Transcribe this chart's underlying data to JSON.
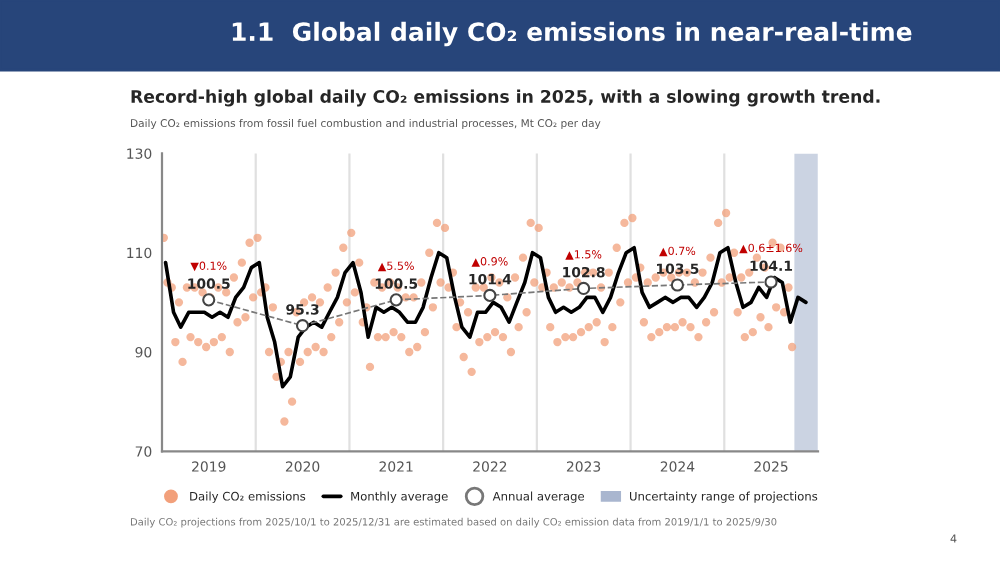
{
  "chart_data": {
    "type": "scatter",
    "title": "1.1  Global daily CO₂ emissions in near-real-time",
    "subtitle": "Record-high global daily CO₂ emissions in 2025, with a slowing growth trend.",
    "ylabel": "Daily CO₂ emissions from fossil fuel combustion and industrial processes, Mt CO₂ per day",
    "xlim": [
      "2019-01-01",
      "2026-01-01"
    ],
    "xticks": [
      {
        "value": "2019-07-02",
        "label": "2019"
      },
      {
        "value": "2020-07-02",
        "label": "2020"
      },
      {
        "value": "2021-07-02",
        "label": "2021"
      },
      {
        "value": "2022-07-02",
        "label": "2022"
      },
      {
        "value": "2023-07-02",
        "label": "2023"
      },
      {
        "value": "2024-07-02",
        "label": "2024"
      },
      {
        "value": "2025-07-02",
        "label": "2025"
      }
    ],
    "ylim": [
      70,
      130
    ],
    "yticks": [
      70,
      90,
      110,
      130
    ],
    "grid": false,
    "legend": "bottom",
    "ref_lines": [
      {
        "axis": "x",
        "value": "2020-01-01",
        "color": "#e0e0e0"
      },
      {
        "axis": "x",
        "value": "2021-01-01",
        "color": "#e0e0e0"
      },
      {
        "axis": "x",
        "value": "2022-01-01",
        "color": "#e0e0e0"
      },
      {
        "axis": "x",
        "value": "2023-01-01",
        "color": "#e0e0e0"
      },
      {
        "axis": "x",
        "value": "2024-01-01",
        "color": "#e0e0e0"
      },
      {
        "axis": "x",
        "value": "2025-01-01",
        "color": "#e0e0e0"
      }
    ],
    "bands": [
      {
        "axis": "x",
        "from": "2025-10-01",
        "to": "2025-12-31",
        "label": "Uncertainty range of projections",
        "color": "#a9b6cf"
      }
    ],
    "series": [
      {
        "name": "Daily CO₂ emissions",
        "marker": "circle",
        "color": "#f2a07b",
        "x": [
          "2019-01-08",
          "2019-01-22",
          "2019-02-08",
          "2019-02-22",
          "2019-03-08",
          "2019-03-22",
          "2019-04-08",
          "2019-04-22",
          "2019-05-08",
          "2019-05-22",
          "2019-06-08",
          "2019-06-22",
          "2019-07-08",
          "2019-07-22",
          "2019-08-08",
          "2019-08-22",
          "2019-09-08",
          "2019-09-22",
          "2019-10-08",
          "2019-10-22",
          "2019-11-08",
          "2019-11-22",
          "2019-12-08",
          "2019-12-22",
          "2020-01-08",
          "2020-01-22",
          "2020-02-08",
          "2020-02-22",
          "2020-03-08",
          "2020-03-22",
          "2020-04-08",
          "2020-04-22",
          "2020-05-08",
          "2020-05-22",
          "2020-06-08",
          "2020-06-22",
          "2020-07-08",
          "2020-07-22",
          "2020-08-08",
          "2020-08-22",
          "2020-09-08",
          "2020-09-22",
          "2020-10-08",
          "2020-10-22",
          "2020-11-08",
          "2020-11-22",
          "2020-12-08",
          "2020-12-22",
          "2021-01-08",
          "2021-01-22",
          "2021-02-08",
          "2021-02-22",
          "2021-03-08",
          "2021-03-22",
          "2021-04-08",
          "2021-04-22",
          "2021-05-08",
          "2021-05-22",
          "2021-06-08",
          "2021-06-22",
          "2021-07-08",
          "2021-07-22",
          "2021-08-08",
          "2021-08-22",
          "2021-09-08",
          "2021-09-22",
          "2021-10-08",
          "2021-10-22",
          "2021-11-08",
          "2021-11-22",
          "2021-12-08",
          "2021-12-22",
          "2022-01-08",
          "2022-01-22",
          "2022-02-08",
          "2022-02-22",
          "2022-03-08",
          "2022-03-22",
          "2022-04-08",
          "2022-04-22",
          "2022-05-08",
          "2022-05-22",
          "2022-06-08",
          "2022-06-22",
          "2022-07-08",
          "2022-07-22",
          "2022-08-08",
          "2022-08-22",
          "2022-09-08",
          "2022-09-22",
          "2022-10-08",
          "2022-10-22",
          "2022-11-08",
          "2022-11-22",
          "2022-12-08",
          "2022-12-22",
          "2023-01-08",
          "2023-01-22",
          "2023-02-08",
          "2023-02-22",
          "2023-03-08",
          "2023-03-22",
          "2023-04-08",
          "2023-04-22",
          "2023-05-08",
          "2023-05-22",
          "2023-06-08",
          "2023-06-22",
          "2023-07-08",
          "2023-07-22",
          "2023-08-08",
          "2023-08-22",
          "2023-09-08",
          "2023-09-22",
          "2023-10-08",
          "2023-10-22",
          "2023-11-08",
          "2023-11-22",
          "2023-12-08",
          "2023-12-22",
          "2024-01-08",
          "2024-01-22",
          "2024-02-08",
          "2024-02-22",
          "2024-03-08",
          "2024-03-22",
          "2024-04-08",
          "2024-04-22",
          "2024-05-08",
          "2024-05-22",
          "2024-06-08",
          "2024-06-22",
          "2024-07-08",
          "2024-07-22",
          "2024-08-08",
          "2024-08-22",
          "2024-09-08",
          "2024-09-22",
          "2024-10-08",
          "2024-10-22",
          "2024-11-08",
          "2024-11-22",
          "2024-12-08",
          "2024-12-22",
          "2025-01-08",
          "2025-01-22",
          "2025-02-08",
          "2025-02-22",
          "2025-03-08",
          "2025-03-22",
          "2025-04-08",
          "2025-04-22",
          "2025-05-08",
          "2025-05-22",
          "2025-06-08",
          "2025-06-22",
          "2025-07-08",
          "2025-07-22",
          "2025-08-08",
          "2025-08-22",
          "2025-09-08",
          "2025-09-22"
        ],
        "values": [
          113,
          104,
          103,
          92,
          100,
          88,
          103,
          93,
          103,
          92,
          102,
          91,
          101,
          92,
          103,
          93,
          102,
          90,
          105,
          96,
          108,
          97,
          112,
          101,
          113,
          102,
          103,
          90,
          99,
          85,
          88,
          76,
          90,
          80,
          98,
          88,
          100,
          90,
          101,
          91,
          100,
          90,
          103,
          93,
          106,
          96,
          111,
          100,
          114,
          102,
          108,
          96,
          99,
          87,
          104,
          93,
          103,
          93,
          104,
          94,
          103,
          93,
          101,
          90,
          101,
          91,
          104,
          94,
          110,
          99,
          116,
          104,
          115,
          103,
          106,
          95,
          100,
          89,
          98,
          86,
          103,
          92,
          103,
          93,
          105,
          94,
          104,
          93,
          101,
          90,
          105,
          95,
          109,
          98,
          116,
          104,
          115,
          103,
          106,
          95,
          103,
          92,
          104,
          93,
          103,
          93,
          104,
          94,
          106,
          95,
          106,
          96,
          103,
          92,
          106,
          95,
          111,
          100,
          116,
          104,
          117,
          105,
          107,
          96,
          104,
          93,
          105,
          94,
          106,
          95,
          105,
          95,
          106,
          96,
          106,
          95,
          104,
          93,
          106,
          96,
          109,
          98,
          116,
          104,
          118,
          105,
          110,
          98,
          105,
          93,
          106,
          94,
          109,
          97,
          107,
          95,
          112,
          99,
          111,
          98,
          103,
          91
        ]
      },
      {
        "name": "Monthly average",
        "type": "line",
        "line_style": "solid",
        "color": "#000000",
        "x": [
          "2019-01-15",
          "2019-02-15",
          "2019-03-15",
          "2019-04-15",
          "2019-05-15",
          "2019-06-15",
          "2019-07-15",
          "2019-08-15",
          "2019-09-15",
          "2019-10-15",
          "2019-11-15",
          "2019-12-15",
          "2020-01-15",
          "2020-02-15",
          "2020-03-15",
          "2020-04-15",
          "2020-05-15",
          "2020-06-15",
          "2020-07-15",
          "2020-08-15",
          "2020-09-15",
          "2020-10-15",
          "2020-11-15",
          "2020-12-15",
          "2021-01-15",
          "2021-02-15",
          "2021-03-15",
          "2021-04-15",
          "2021-05-15",
          "2021-06-15",
          "2021-07-15",
          "2021-08-15",
          "2021-09-15",
          "2021-10-15",
          "2021-11-15",
          "2021-12-15",
          "2022-01-15",
          "2022-02-15",
          "2022-03-15",
          "2022-04-15",
          "2022-05-15",
          "2022-06-15",
          "2022-07-15",
          "2022-08-15",
          "2022-09-15",
          "2022-10-15",
          "2022-11-15",
          "2022-12-15",
          "2023-01-15",
          "2023-02-15",
          "2023-03-15",
          "2023-04-15",
          "2023-05-15",
          "2023-06-15",
          "2023-07-15",
          "2023-08-15",
          "2023-09-15",
          "2023-10-15",
          "2023-11-15",
          "2023-12-15",
          "2024-01-15",
          "2024-02-15",
          "2024-03-15",
          "2024-04-15",
          "2024-05-15",
          "2024-06-15",
          "2024-07-15",
          "2024-08-15",
          "2024-09-15",
          "2024-10-15",
          "2024-11-15",
          "2024-12-15",
          "2025-01-15",
          "2025-02-15",
          "2025-03-15",
          "2025-04-15",
          "2025-05-15",
          "2025-06-15",
          "2025-07-15",
          "2025-08-15",
          "2025-09-15",
          "2025-10-15",
          "2025-11-15"
        ],
        "values": [
          108,
          98,
          95,
          98,
          98,
          98,
          97,
          98,
          97,
          101,
          103,
          107,
          108,
          97,
          92,
          83,
          85,
          93,
          95,
          96,
          95,
          98,
          101,
          106,
          108,
          102,
          93,
          99,
          98,
          99,
          98,
          96,
          96,
          99,
          105,
          110,
          109,
          101,
          95,
          93,
          98,
          98,
          100,
          99,
          96,
          100,
          104,
          110,
          109,
          101,
          98,
          99,
          98,
          99,
          101,
          101,
          98,
          101,
          106,
          110,
          111,
          102,
          99,
          100,
          101,
          100,
          101,
          101,
          99,
          101,
          104,
          110,
          111,
          104,
          99,
          100,
          103,
          101,
          105,
          104,
          96,
          101,
          100
        ]
      },
      {
        "name": "Annual average",
        "type": "line",
        "line_style": "dashed",
        "marker": "circle",
        "color": "#777777",
        "x": [
          "2019-07-02",
          "2020-07-02",
          "2021-07-02",
          "2022-07-02",
          "2023-07-02",
          "2024-07-02",
          "2025-07-02"
        ],
        "values": [
          100.5,
          95.3,
          100.5,
          101.4,
          102.8,
          103.5,
          104.1
        ],
        "value_labels": [
          "100.5",
          "95.3",
          "100.5",
          "101.4",
          "102.8",
          "103.5",
          "104.1"
        ]
      }
    ],
    "annotations": [
      {
        "text": "▼0.1%",
        "x": "2019-07-02",
        "y": 100.5
      },
      {
        "text": "▲5.5%",
        "x": "2021-07-02",
        "y": 100.5
      },
      {
        "text": "▲0.9%",
        "x": "2022-07-02",
        "y": 101.4
      },
      {
        "text": "▲1.5%",
        "x": "2023-07-02",
        "y": 102.8
      },
      {
        "text": "▲0.7%",
        "x": "2024-07-02",
        "y": 103.5
      },
      {
        "text": "▲0.6±1.6%",
        "x": "2025-07-02",
        "y": 104.1
      },
      "Daily CO₂ projections from 2025/10/1 to 2025/12/31 are estimated based on daily CO₂ emission data from 2019/1/1 to 2025/9/30",
      "4"
    ]
  }
}
